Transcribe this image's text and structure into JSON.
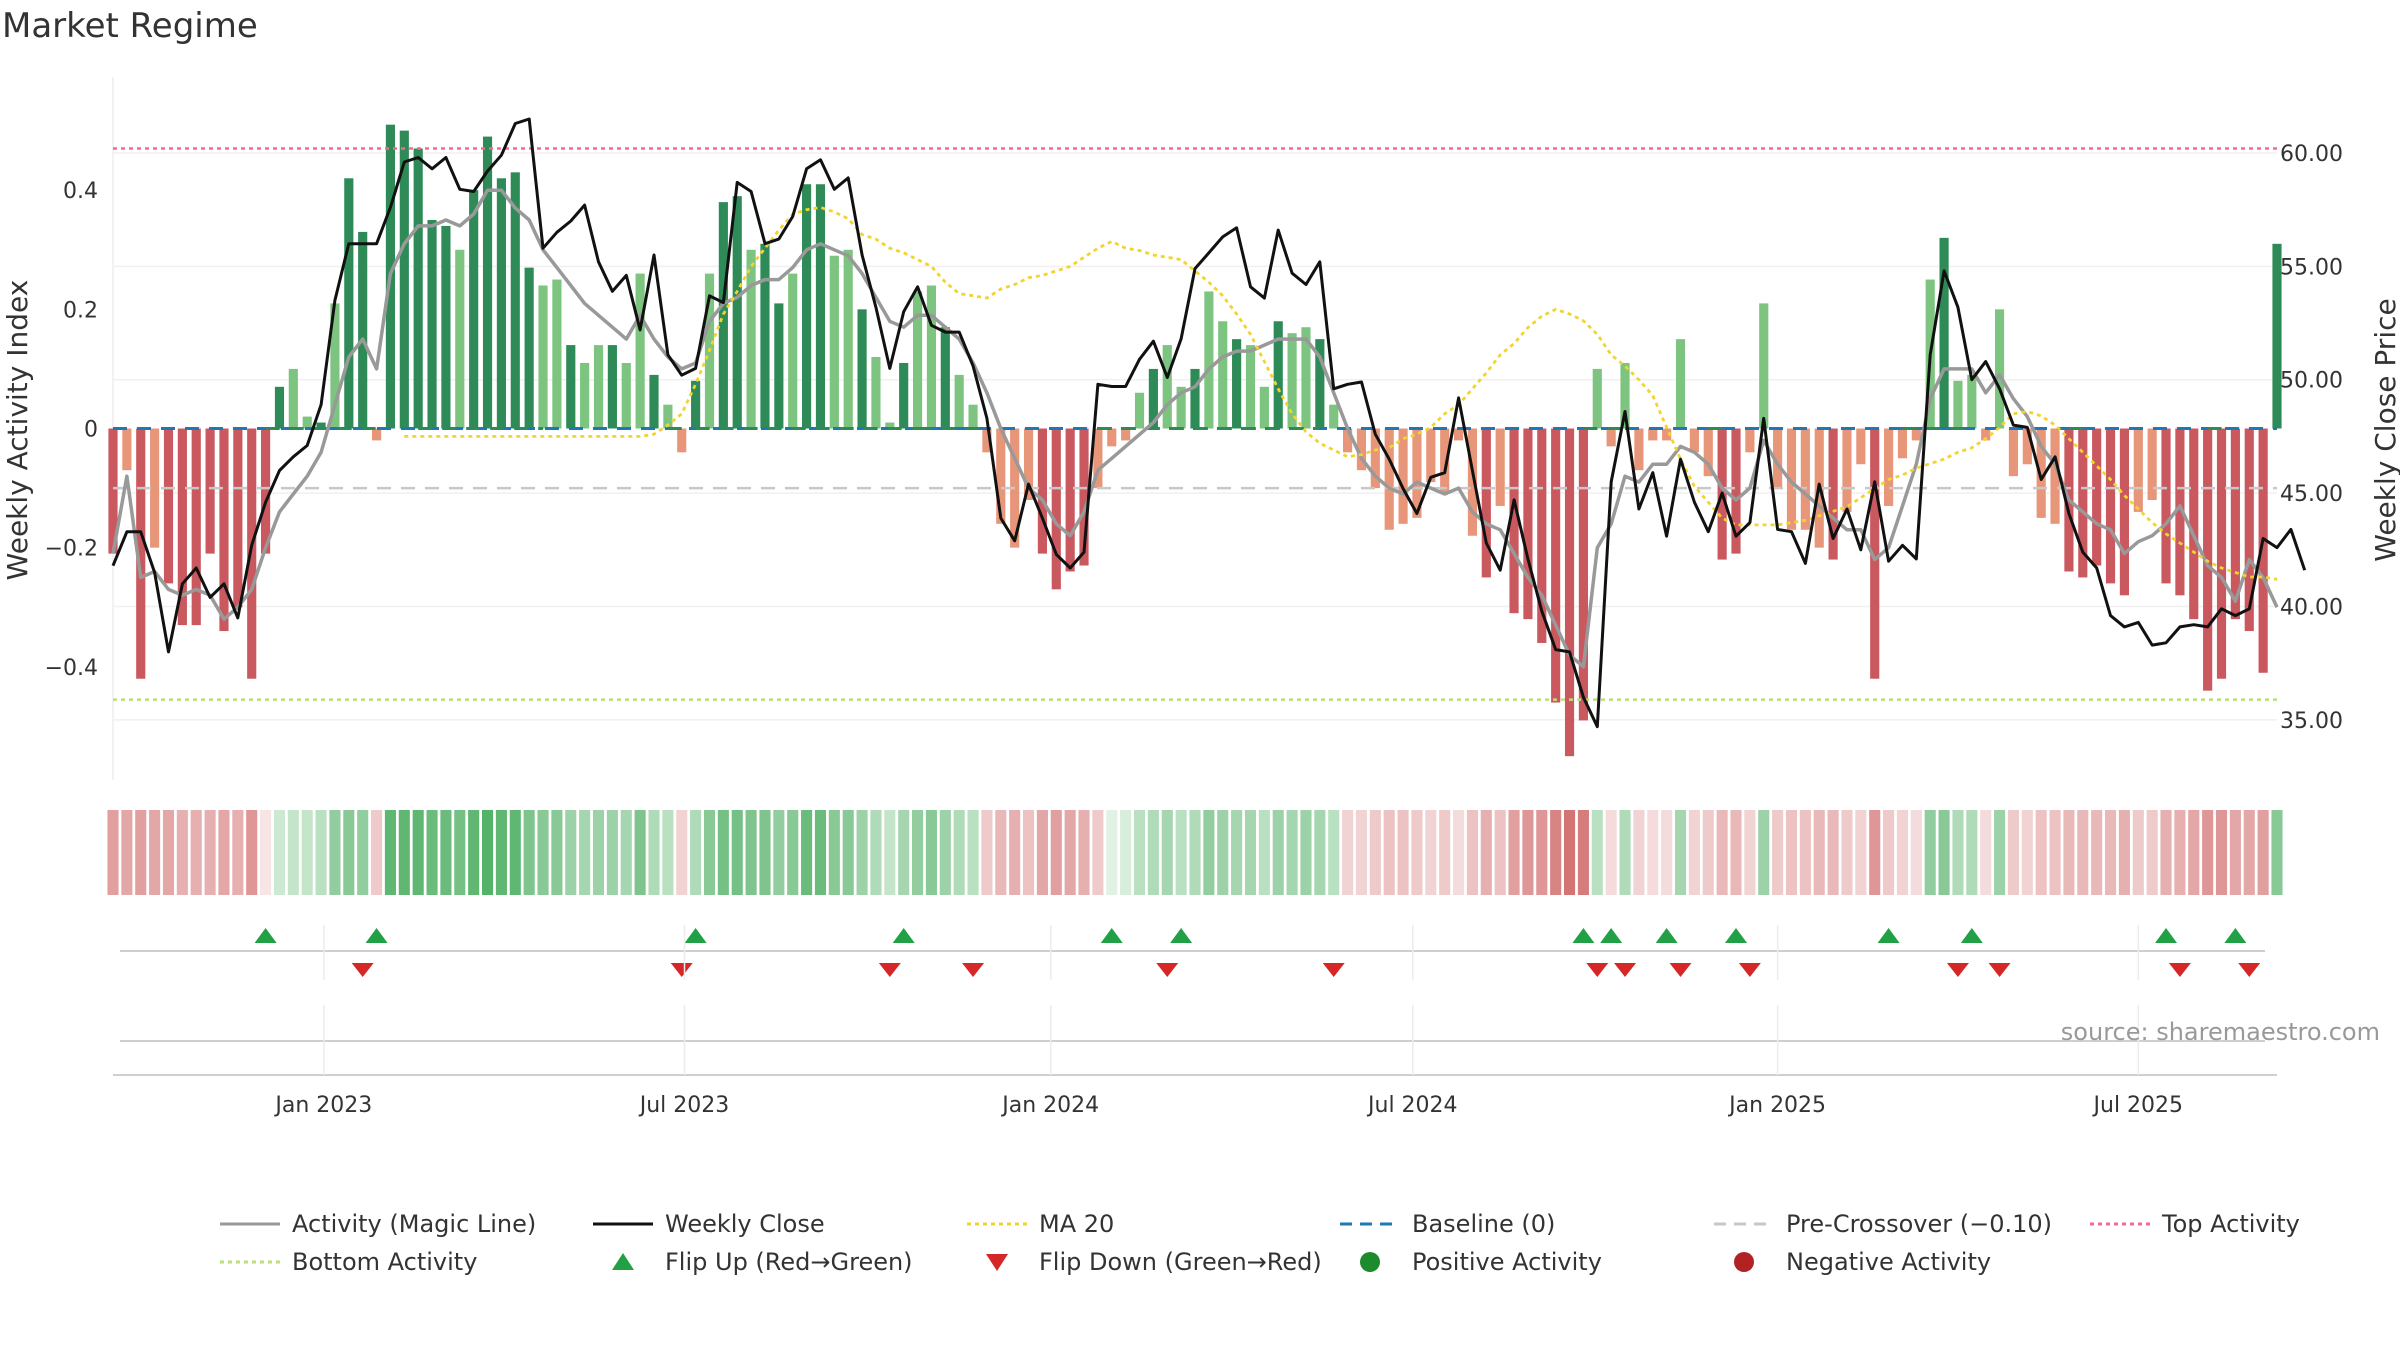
{
  "chart_data": {
    "type": "bar",
    "title": "Market Regime",
    "ylabel": "Weekly Activity Index",
    "ylabel_right": "Weekly Close Price",
    "ylim": [
      -0.59,
      0.59
    ],
    "ylim_right": [
      32.35,
      63.35
    ],
    "yticks": [
      {
        "v": 0.4,
        "label": "0.4"
      },
      {
        "v": 0.2,
        "label": "0.2"
      },
      {
        "v": 0,
        "label": "0"
      },
      {
        "v": -0.2,
        "label": "−0.2"
      },
      {
        "v": -0.4,
        "label": "−0.4"
      }
    ],
    "yticks_right": [
      {
        "v": 60,
        "label": "60.00"
      },
      {
        "v": 55,
        "label": "55.00"
      },
      {
        "v": 50,
        "label": "50.00"
      },
      {
        "v": 45,
        "label": "45.00"
      },
      {
        "v": 40,
        "label": "40.00"
      },
      {
        "v": 35,
        "label": "35.00"
      }
    ],
    "xticks": [
      {
        "i": 15.2,
        "label": "Jan 2023"
      },
      {
        "i": 41.2,
        "label": "Jul 2023"
      },
      {
        "i": 67.6,
        "label": "Jan 2024"
      },
      {
        "i": 93.7,
        "label": "Jul 2024"
      },
      {
        "i": 120.0,
        "label": "Jan 2025"
      },
      {
        "i": 146.0,
        "label": "Jul 2025"
      }
    ],
    "activity": [
      -0.21,
      -0.07,
      -0.42,
      -0.2,
      -0.26,
      -0.33,
      -0.33,
      -0.21,
      -0.34,
      -0.3,
      -0.42,
      -0.21,
      0.07,
      0.1,
      0.02,
      0.01,
      0.21,
      0.42,
      0.33,
      -0.02,
      0.51,
      0.5,
      0.47,
      0.35,
      0.34,
      0.3,
      0.4,
      0.49,
      0.42,
      0.43,
      0.27,
      0.24,
      0.25,
      0.14,
      0.11,
      0.14,
      0.14,
      0.11,
      0.26,
      0.09,
      0.04,
      -0.04,
      0.08,
      0.26,
      0.38,
      0.39,
      0.3,
      0.31,
      0.21,
      0.26,
      0.41,
      0.41,
      0.29,
      0.3,
      0.2,
      0.12,
      0.01,
      0.11,
      0.23,
      0.24,
      0.17,
      0.09,
      0.04,
      -0.04,
      -0.16,
      -0.2,
      -0.12,
      -0.21,
      -0.27,
      -0.24,
      -0.23,
      -0.1,
      -0.03,
      -0.02,
      0.06,
      0.1,
      0.14,
      0.07,
      0.1,
      0.23,
      0.18,
      0.15,
      0.14,
      0.07,
      0.18,
      0.16,
      0.17,
      0.15,
      0.04,
      -0.04,
      -0.07,
      -0.1,
      -0.17,
      -0.16,
      -0.15,
      -0.09,
      -0.11,
      -0.02,
      -0.18,
      -0.25,
      -0.13,
      -0.31,
      -0.32,
      -0.36,
      -0.46,
      -0.55,
      -0.49,
      0.1,
      -0.03,
      0.11,
      -0.07,
      -0.02,
      -0.02,
      0.15,
      -0.04,
      -0.08,
      -0.22,
      -0.21,
      -0.04,
      0.21,
      -0.1,
      -0.17,
      -0.17,
      -0.2,
      -0.22,
      -0.14,
      -0.06,
      -0.42,
      -0.13,
      -0.05,
      -0.02,
      0.25,
      0.32,
      0.08,
      0.09,
      -0.02,
      0.2,
      -0.08,
      -0.06,
      -0.15,
      -0.16,
      -0.24,
      -0.25,
      -0.23,
      -0.26,
      -0.28,
      -0.14,
      -0.12,
      -0.26,
      -0.28,
      -0.32,
      -0.44,
      -0.42,
      -0.32,
      -0.34,
      -0.41,
      0.31
    ],
    "magic_line": [
      -0.21,
      -0.08,
      -0.25,
      -0.24,
      -0.27,
      -0.28,
      -0.27,
      -0.28,
      -0.32,
      -0.3,
      -0.27,
      -0.2,
      -0.14,
      -0.11,
      -0.08,
      -0.04,
      0.04,
      0.12,
      0.15,
      0.1,
      0.26,
      0.31,
      0.34,
      0.34,
      0.35,
      0.34,
      0.36,
      0.4,
      0.4,
      0.37,
      0.35,
      0.3,
      0.27,
      0.24,
      0.21,
      0.19,
      0.17,
      0.15,
      0.19,
      0.15,
      0.12,
      0.1,
      0.11,
      0.18,
      0.21,
      0.22,
      0.24,
      0.25,
      0.25,
      0.27,
      0.3,
      0.31,
      0.3,
      0.29,
      0.26,
      0.22,
      0.18,
      0.17,
      0.19,
      0.19,
      0.17,
      0.15,
      0.11,
      0.06,
      0.0,
      -0.05,
      -0.1,
      -0.12,
      -0.16,
      -0.18,
      -0.14,
      -0.07,
      -0.05,
      -0.03,
      -0.01,
      0.01,
      0.04,
      0.06,
      0.07,
      0.1,
      0.12,
      0.13,
      0.13,
      0.14,
      0.15,
      0.15,
      0.15,
      0.12,
      0.06,
      0.0,
      -0.05,
      -0.08,
      -0.1,
      -0.11,
      -0.09,
      -0.1,
      -0.11,
      -0.1,
      -0.14,
      -0.16,
      -0.17,
      -0.21,
      -0.25,
      -0.28,
      -0.33,
      -0.38,
      -0.4,
      -0.2,
      -0.16,
      -0.08,
      -0.09,
      -0.06,
      -0.06,
      -0.03,
      -0.04,
      -0.06,
      -0.1,
      -0.12,
      -0.1,
      -0.02,
      -0.06,
      -0.09,
      -0.11,
      -0.13,
      -0.15,
      -0.17,
      -0.17,
      -0.22,
      -0.2,
      -0.13,
      -0.06,
      0.05,
      0.1,
      0.1,
      0.1,
      0.06,
      0.09,
      0.05,
      0.02,
      -0.03,
      -0.06,
      -0.12,
      -0.14,
      -0.16,
      -0.17,
      -0.21,
      -0.19,
      -0.18,
      -0.16,
      -0.13,
      -0.18,
      -0.23,
      -0.25,
      -0.29,
      -0.22,
      -0.25,
      -0.3
    ],
    "weekly_close": [
      41.8,
      43.3,
      43.3,
      41.5,
      38.0,
      41.0,
      41.7,
      40.4,
      41.0,
      39.5,
      42.7,
      44.6,
      46.0,
      46.6,
      47.1,
      48.9,
      53.5,
      56.0,
      56.0,
      56.0,
      57.6,
      59.6,
      59.8,
      59.3,
      59.8,
      58.4,
      58.3,
      59.2,
      59.9,
      61.3,
      61.5,
      55.8,
      56.5,
      57.0,
      57.7,
      55.2,
      53.9,
      54.6,
      52.2,
      55.5,
      51.1,
      50.2,
      50.5,
      53.7,
      53.4,
      58.7,
      58.3,
      56.0,
      56.2,
      57.2,
      59.3,
      59.7,
      58.4,
      58.9,
      55.5,
      53.2,
      50.5,
      53.0,
      54.1,
      52.4,
      52.1,
      52.1,
      50.6,
      48.3,
      43.9,
      42.9,
      45.4,
      43.9,
      42.3,
      41.7,
      42.4,
      49.8,
      49.7,
      49.7,
      50.9,
      51.7,
      50.1,
      51.8,
      54.9,
      55.6,
      56.3,
      56.7,
      54.1,
      53.6,
      56.6,
      54.7,
      54.2,
      55.2,
      49.6,
      49.8,
      49.9,
      47.6,
      46.5,
      45.2,
      44.1,
      45.7,
      45.9,
      49.2,
      46.0,
      42.8,
      41.6,
      44.7,
      42.1,
      39.8,
      38.1,
      38.0,
      36.0,
      34.7,
      45.5,
      48.6,
      44.3,
      45.9,
      43.1,
      46.5,
      44.6,
      43.3,
      45.0,
      43.1,
      43.7,
      48.3,
      43.4,
      43.3,
      41.9,
      45.4,
      43.0,
      44.3,
      42.5,
      45.5,
      42.0,
      42.7,
      42.1,
      51.1,
      54.8,
      53.2,
      50.0,
      50.8,
      49.6,
      48.0,
      47.9,
      45.6,
      46.6,
      44.1,
      42.4,
      41.7,
      39.6,
      39.1,
      39.3,
      38.3,
      38.4,
      39.1,
      39.2,
      39.1,
      39.9,
      39.6,
      39.9,
      43.0,
      42.6,
      43.4,
      41.6
    ],
    "ma20": [
      47.5,
      47.5,
      47.5,
      47.5,
      47.5,
      47.5,
      47.5,
      47.5,
      47.5,
      47.5,
      47.5,
      47.5,
      47.5,
      47.5,
      47.5,
      47.5,
      47.5,
      47.5,
      47.6,
      48.0,
      48.5,
      49.8,
      51.3,
      52.9,
      53.9,
      55.0,
      55.8,
      56.6,
      57.3,
      57.5,
      57.6,
      57.4,
      57.1,
      56.4,
      56.2,
      55.8,
      55.6,
      55.3,
      55.0,
      54.3,
      53.8,
      53.7,
      53.6,
      54.0,
      54.2,
      54.5,
      54.6,
      54.8,
      55.0,
      55.4,
      55.8,
      56.1,
      55.8,
      55.7,
      55.5,
      55.4,
      55.3,
      54.8,
      54.3,
      53.7,
      52.9,
      52.0,
      50.8,
      49.6,
      48.5,
      47.7,
      47.2,
      46.9,
      46.6,
      46.7,
      46.9,
      47.0,
      47.4,
      47.6,
      47.9,
      48.5,
      48.9,
      49.6,
      50.3,
      51.1,
      51.6,
      52.3,
      52.8,
      53.1,
      52.9,
      52.6,
      52.0,
      51.1,
      50.6,
      50.0,
      49.3,
      47.9,
      46.5,
      45.3,
      44.6,
      43.9,
      43.6,
      43.6,
      43.6,
      43.6,
      43.7,
      43.8,
      44.0,
      44.2,
      44.4,
      44.8,
      45.2,
      45.6,
      45.8,
      46.1,
      46.3,
      46.5,
      46.8,
      47.0,
      47.4,
      47.9,
      48.5,
      48.6,
      48.4,
      48.0,
      47.4,
      46.8,
      46.2,
      45.6,
      44.9,
      44.3,
      43.7,
      43.2,
      42.8,
      42.4,
      42.0,
      41.7,
      41.5,
      41.3,
      41.3,
      41.2
    ],
    "baseline_green": [
      [
        11,
        19
      ],
      [
        22,
        31
      ],
      [
        40,
        41
      ],
      [
        42,
        58
      ],
      [
        58,
        63
      ],
      [
        71,
        87
      ],
      [
        106,
        109
      ],
      [
        115,
        116
      ],
      [
        129,
        134
      ],
      [
        141,
        142
      ],
      [
        151,
        152
      ]
    ],
    "regime_strip": [
      -0.55,
      -0.5,
      -0.55,
      -0.5,
      -0.5,
      -0.45,
      -0.45,
      -0.45,
      -0.5,
      -0.45,
      -0.6,
      -0.15,
      0.25,
      0.3,
      0.3,
      0.35,
      0.55,
      0.6,
      0.55,
      -0.3,
      0.8,
      0.8,
      0.8,
      0.75,
      0.75,
      0.7,
      0.8,
      0.85,
      0.8,
      0.8,
      0.65,
      0.6,
      0.6,
      0.5,
      0.45,
      0.5,
      0.5,
      0.45,
      0.65,
      0.4,
      0.35,
      -0.25,
      0.4,
      0.6,
      0.7,
      0.7,
      0.65,
      0.65,
      0.55,
      0.6,
      0.75,
      0.75,
      0.6,
      0.6,
      0.5,
      0.4,
      0.3,
      0.45,
      0.55,
      0.6,
      0.5,
      0.4,
      0.35,
      -0.3,
      -0.4,
      -0.45,
      -0.35,
      -0.5,
      -0.55,
      -0.5,
      -0.45,
      -0.3,
      0.15,
      0.2,
      0.35,
      0.4,
      0.45,
      0.35,
      0.4,
      0.55,
      0.5,
      0.45,
      0.45,
      0.35,
      0.5,
      0.45,
      0.5,
      0.45,
      0.35,
      -0.25,
      -0.25,
      -0.3,
      -0.35,
      -0.35,
      -0.3,
      -0.25,
      -0.3,
      -0.2,
      -0.35,
      -0.45,
      -0.35,
      -0.55,
      -0.6,
      -0.6,
      -0.7,
      -0.8,
      -0.75,
      0.35,
      -0.2,
      0.4,
      -0.25,
      -0.2,
      -0.2,
      0.45,
      -0.25,
      -0.3,
      -0.4,
      -0.4,
      -0.25,
      0.5,
      -0.3,
      -0.35,
      -0.35,
      -0.4,
      -0.4,
      -0.3,
      -0.25,
      -0.6,
      -0.3,
      -0.25,
      -0.2,
      0.55,
      0.6,
      0.4,
      0.4,
      -0.2,
      0.5,
      -0.3,
      -0.25,
      -0.35,
      -0.35,
      -0.4,
      -0.4,
      -0.4,
      -0.4,
      -0.45,
      -0.3,
      -0.3,
      -0.45,
      -0.45,
      -0.5,
      -0.6,
      -0.6,
      -0.5,
      -0.5,
      -0.55,
      0.6
    ],
    "flip_up": [
      11,
      19,
      42,
      57,
      72,
      77,
      106,
      108,
      112,
      117,
      128,
      134,
      148,
      153
    ],
    "flip_down": [
      18,
      41,
      56,
      62,
      76,
      88,
      107,
      109,
      113,
      118,
      133,
      136,
      149,
      154
    ],
    "top_activity": 0.47,
    "bottom_activity": -0.455,
    "pre_crossover": -0.1,
    "colors": {
      "pos_dark": "#2e8b57",
      "pos_light": "#7cc47f",
      "neg_dark": "#c9585f",
      "neg_light": "#e8967a",
      "magic": "#999999",
      "close": "#111111",
      "ma20": "#f2d430",
      "baseline": "#1f77b4",
      "pre": "#c8c8c8",
      "top": "#ef6b8f",
      "bottom": "#b9e07a",
      "flip_up": "#22a046",
      "flip_down": "#d62728",
      "dot_pos": "#1e8a2e",
      "dot_neg": "#b22222"
    }
  },
  "legend": [
    {
      "label": "Activity (Magic Line)",
      "kind": "line",
      "color": "#999999",
      "dash": ""
    },
    {
      "label": "Weekly Close",
      "kind": "line",
      "color": "#111111",
      "dash": ""
    },
    {
      "label": "MA 20",
      "kind": "line",
      "color": "#f2d430",
      "dash": "4,4"
    },
    {
      "label": "Baseline (0)",
      "kind": "line",
      "color": "#1f77b4",
      "dash": "12,8"
    },
    {
      "label": "Pre-Crossover (−0.10)",
      "kind": "line",
      "color": "#c8c8c8",
      "dash": "12,8"
    },
    {
      "label": "Top Activity",
      "kind": "line",
      "color": "#ef6b8f",
      "dash": "4,4"
    },
    {
      "label": "Bottom Activity",
      "kind": "line",
      "color": "#b9e07a",
      "dash": "4,4"
    },
    {
      "label": "Flip Up (Red→Green)",
      "kind": "up",
      "color": "#22a046",
      "dash": ""
    },
    {
      "label": "Flip Down (Green→Red)",
      "kind": "down",
      "color": "#d62728",
      "dash": ""
    },
    {
      "label": "Positive Activity",
      "kind": "dot",
      "color": "#1e8a2e",
      "dash": ""
    },
    {
      "label": "Negative Activity",
      "kind": "dot",
      "color": "#b22222",
      "dash": ""
    }
  ],
  "source": "source: sharemaestro.com"
}
